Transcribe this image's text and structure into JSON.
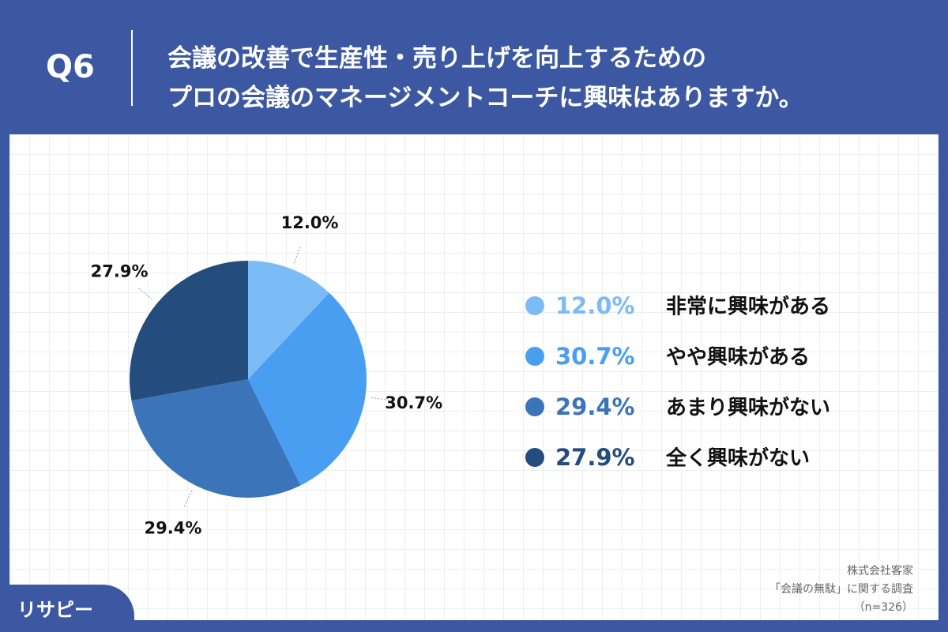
{
  "header": {
    "question": "Q6",
    "title_lines": [
      "会議の改善で生産性・売り上げを向上するための",
      "プロの会議のマネージメントコーチに興味はありますか。"
    ]
  },
  "chart_data": {
    "type": "pie",
    "categories": [
      "非常に興味がある",
      "やや興味がある",
      "あまり興味がない",
      "全く興味がない"
    ],
    "values": [
      12.0,
      30.7,
      29.4,
      27.9
    ],
    "value_labels": [
      "12.0%",
      "30.7%",
      "29.4%",
      "27.9%"
    ],
    "colors": [
      "#7cbcf6",
      "#4a9ef2",
      "#3b74b9",
      "#244c7d"
    ],
    "legend": "right"
  },
  "source": [
    "株式会社客家",
    "「会議の無駄」に関する調査",
    "（n=326）"
  ],
  "logo": "リサピー"
}
